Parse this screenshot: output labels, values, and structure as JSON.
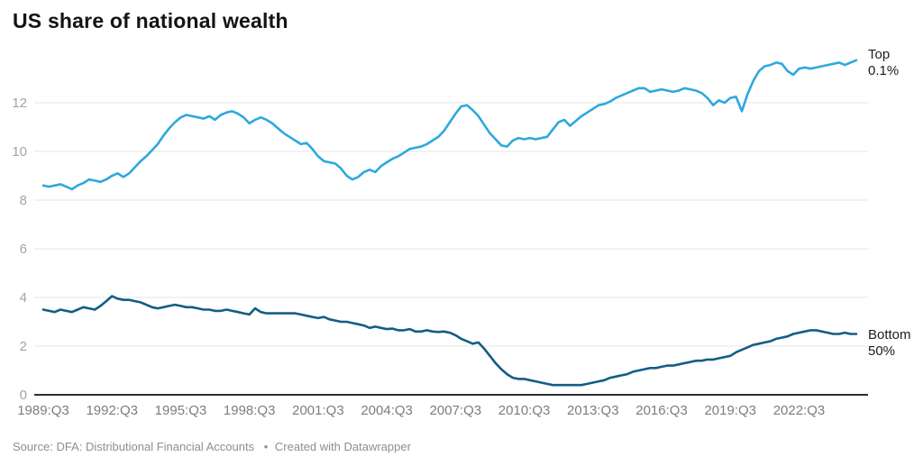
{
  "header": {
    "title": "US share of national wealth"
  },
  "footer": {
    "source_label": "Source:",
    "source_name": "DFA: Distributional Financial Accounts",
    "bullet": "•",
    "attribution": "Created with Datawrapper"
  },
  "colors": {
    "top_line": "#2fa8de",
    "bottom_line": "#135d84",
    "gridline": "#e4e4e4",
    "baseline": "#2f2f2f",
    "y_tick_text": "#a3a3a3",
    "x_tick_text": "#7d7d7d"
  },
  "chart_data": {
    "type": "line",
    "title": "US share of national wealth",
    "xlabel": "",
    "ylabel": "",
    "x_unit": "quarter",
    "x_start": "1989:Q3",
    "x_end": "2025:Q1",
    "x_tick_labels": [
      "1989:Q3",
      "1992:Q3",
      "1995:Q3",
      "1998:Q3",
      "2001:Q3",
      "2004:Q3",
      "2007:Q3",
      "2010:Q3",
      "2013:Q3",
      "2016:Q3",
      "2019:Q3",
      "2022:Q3"
    ],
    "x_tick_every": 12,
    "y_ticks": [
      0,
      2,
      4,
      6,
      8,
      10,
      12
    ],
    "ylim": [
      0,
      14
    ],
    "grid": "horizontal",
    "legend_position": "end-of-line-labels",
    "series": [
      {
        "name": "Top 0.1%",
        "label_lines": [
          "Top",
          "0.1%"
        ],
        "color": "#2fa8de",
        "values": [
          8.6,
          8.55,
          8.6,
          8.65,
          8.55,
          8.45,
          8.6,
          8.7,
          8.85,
          8.8,
          8.75,
          8.85,
          9.0,
          9.1,
          8.95,
          9.1,
          9.35,
          9.6,
          9.8,
          10.05,
          10.3,
          10.65,
          10.95,
          11.2,
          11.4,
          11.5,
          11.45,
          11.4,
          11.35,
          11.45,
          11.3,
          11.5,
          11.6,
          11.65,
          11.55,
          11.4,
          11.15,
          11.3,
          11.4,
          11.3,
          11.15,
          10.95,
          10.75,
          10.6,
          10.45,
          10.3,
          10.35,
          10.1,
          9.8,
          9.6,
          9.55,
          9.5,
          9.3,
          9.0,
          8.85,
          8.95,
          9.15,
          9.25,
          9.15,
          9.4,
          9.55,
          9.7,
          9.8,
          9.95,
          10.1,
          10.15,
          10.2,
          10.3,
          10.45,
          10.6,
          10.85,
          11.2,
          11.55,
          11.85,
          11.9,
          11.7,
          11.45,
          11.1,
          10.75,
          10.5,
          10.25,
          10.2,
          10.45,
          10.55,
          10.5,
          10.55,
          10.5,
          10.55,
          10.6,
          10.9,
          11.2,
          11.3,
          11.05,
          11.25,
          11.45,
          11.6,
          11.75,
          11.9,
          11.95,
          12.05,
          12.2,
          12.3,
          12.4,
          12.5,
          12.6,
          12.6,
          12.45,
          12.5,
          12.55,
          12.5,
          12.45,
          12.5,
          12.6,
          12.55,
          12.5,
          12.4,
          12.2,
          11.9,
          12.1,
          12.0,
          12.2,
          12.25,
          11.65,
          12.35,
          12.9,
          13.3,
          13.5,
          13.55,
          13.65,
          13.6,
          13.3,
          13.15,
          13.4,
          13.45,
          13.4,
          13.45,
          13.5,
          13.55,
          13.6,
          13.65,
          13.55,
          13.65,
          13.75
        ]
      },
      {
        "name": "Bottom 50%",
        "label_lines": [
          "Bottom",
          "50%"
        ],
        "color": "#135d84",
        "values": [
          3.5,
          3.45,
          3.4,
          3.5,
          3.45,
          3.4,
          3.5,
          3.6,
          3.55,
          3.5,
          3.65,
          3.85,
          4.05,
          3.95,
          3.9,
          3.9,
          3.85,
          3.8,
          3.7,
          3.6,
          3.55,
          3.6,
          3.65,
          3.7,
          3.65,
          3.6,
          3.6,
          3.55,
          3.5,
          3.5,
          3.45,
          3.45,
          3.5,
          3.45,
          3.4,
          3.35,
          3.3,
          3.55,
          3.4,
          3.35,
          3.35,
          3.35,
          3.35,
          3.35,
          3.35,
          3.3,
          3.25,
          3.2,
          3.15,
          3.2,
          3.1,
          3.05,
          3.0,
          3.0,
          2.95,
          2.9,
          2.85,
          2.75,
          2.8,
          2.75,
          2.7,
          2.72,
          2.65,
          2.65,
          2.7,
          2.6,
          2.6,
          2.65,
          2.6,
          2.58,
          2.6,
          2.55,
          2.45,
          2.3,
          2.2,
          2.1,
          2.15,
          1.9,
          1.6,
          1.3,
          1.05,
          0.85,
          0.7,
          0.65,
          0.65,
          0.6,
          0.55,
          0.5,
          0.45,
          0.4,
          0.4,
          0.4,
          0.4,
          0.4,
          0.4,
          0.45,
          0.5,
          0.55,
          0.6,
          0.7,
          0.75,
          0.8,
          0.85,
          0.95,
          1.0,
          1.05,
          1.1,
          1.1,
          1.15,
          1.2,
          1.2,
          1.25,
          1.3,
          1.35,
          1.4,
          1.4,
          1.45,
          1.45,
          1.5,
          1.55,
          1.6,
          1.75,
          1.85,
          1.95,
          2.05,
          2.1,
          2.15,
          2.2,
          2.3,
          2.35,
          2.4,
          2.5,
          2.55,
          2.6,
          2.65,
          2.65,
          2.6,
          2.55,
          2.5,
          2.5,
          2.55,
          2.5,
          2.5
        ]
      }
    ]
  }
}
